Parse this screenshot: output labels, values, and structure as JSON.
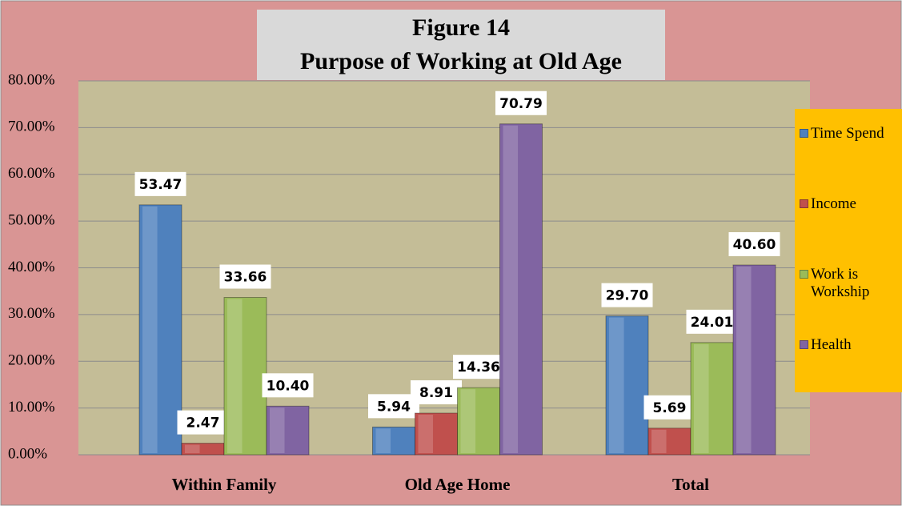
{
  "chart_data": {
    "type": "bar",
    "title": "Figure 14",
    "subtitle": "Purpose of Working at Old Age",
    "categories": [
      "Within Family",
      "Old Age Home",
      "Total"
    ],
    "series": [
      {
        "name": "Time Spend",
        "color": "#4f81bd",
        "values": [
          53.47,
          5.94,
          29.7
        ],
        "value_labels": [
          "53.47",
          "5.94",
          "29.70"
        ]
      },
      {
        "name": "Income",
        "color": "#c0504d",
        "values": [
          2.47,
          8.91,
          5.69
        ],
        "value_labels": [
          "2.47",
          "8.91",
          "5.69"
        ]
      },
      {
        "name": "Work is Workship",
        "color": "#9bbb59",
        "values": [
          33.66,
          14.36,
          24.01
        ],
        "value_labels": [
          "33.66",
          "14.36",
          "24.01"
        ]
      },
      {
        "name": "Health",
        "color": "#8064a2",
        "values": [
          10.4,
          70.79,
          40.6
        ],
        "value_labels": [
          "10.40",
          "70.79",
          "40.60"
        ]
      }
    ],
    "ylim": [
      0,
      80
    ],
    "yticks": [
      {
        "value": 0,
        "label": "0.00%"
      },
      {
        "value": 10,
        "label": "10.00%"
      },
      {
        "value": 20,
        "label": "20.00%"
      },
      {
        "value": 30,
        "label": "30.00%"
      },
      {
        "value": 40,
        "label": "40.00%"
      },
      {
        "value": 50,
        "label": "50.00%"
      },
      {
        "value": 60,
        "label": "60.00%"
      },
      {
        "value": 70,
        "label": "70.00%"
      },
      {
        "value": 80,
        "label": "80.00%"
      }
    ],
    "grid": true,
    "legend": "right"
  }
}
